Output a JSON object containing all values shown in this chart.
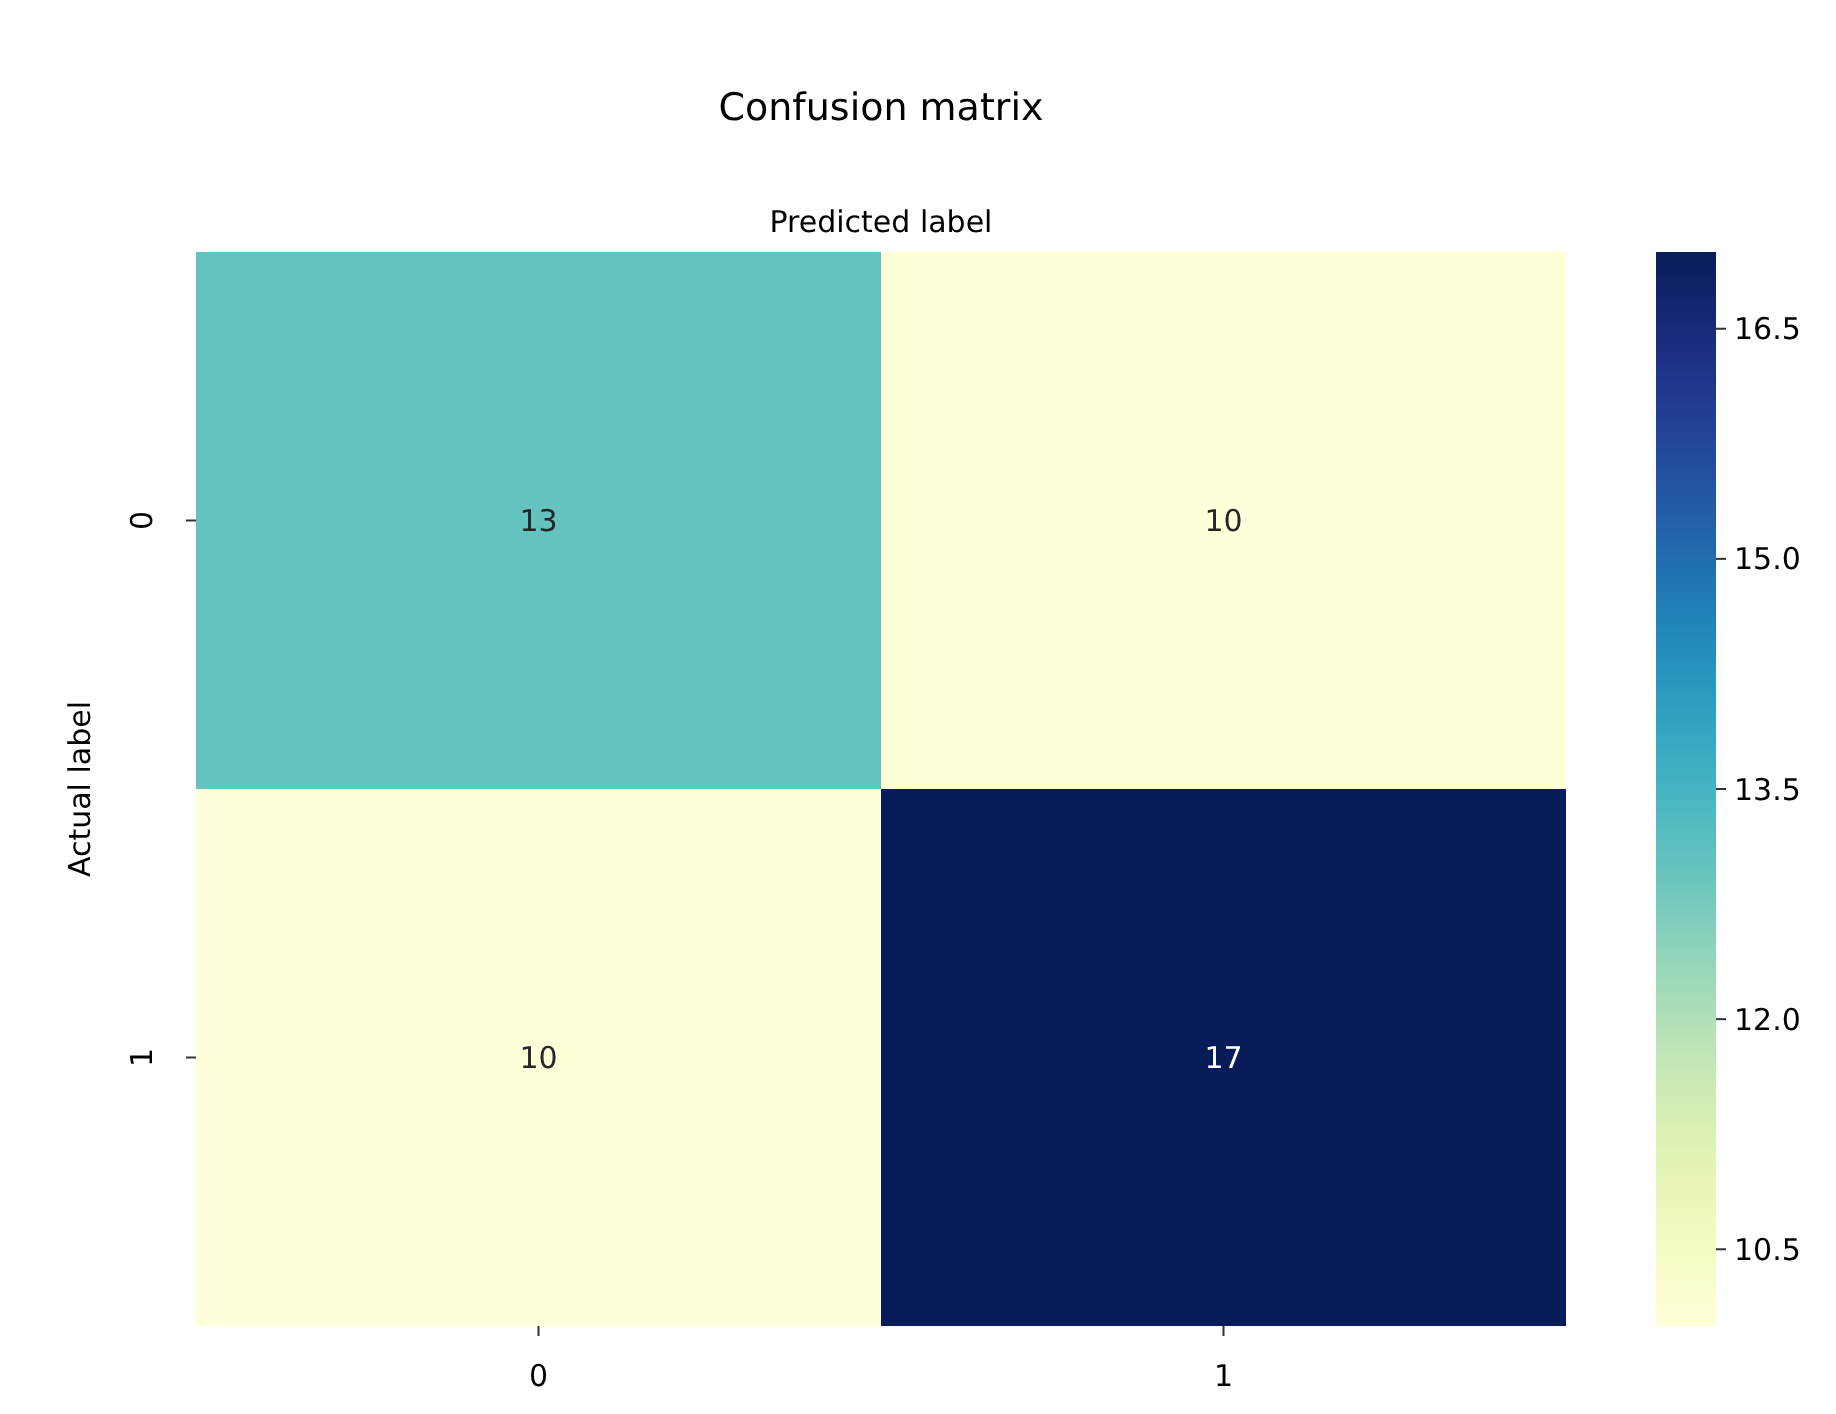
{
  "chart_data": {
    "type": "heatmap",
    "title": "Confusion matrix",
    "xlabel": "Predicted label",
    "ylabel": "Actual label",
    "categories": [
      "0",
      "1"
    ],
    "y_categories": [
      "0",
      "1"
    ],
    "cells": [
      [
        13,
        10
      ],
      [
        10,
        17
      ]
    ],
    "data_labels": true,
    "clim": [
      10,
      17
    ],
    "cticks": [
      10.5,
      {
        "value": 12,
        "label": "12.0"
      },
      13.5,
      {
        "value": 15,
        "label": "15.0"
      },
      16.5
    ]
  }
}
